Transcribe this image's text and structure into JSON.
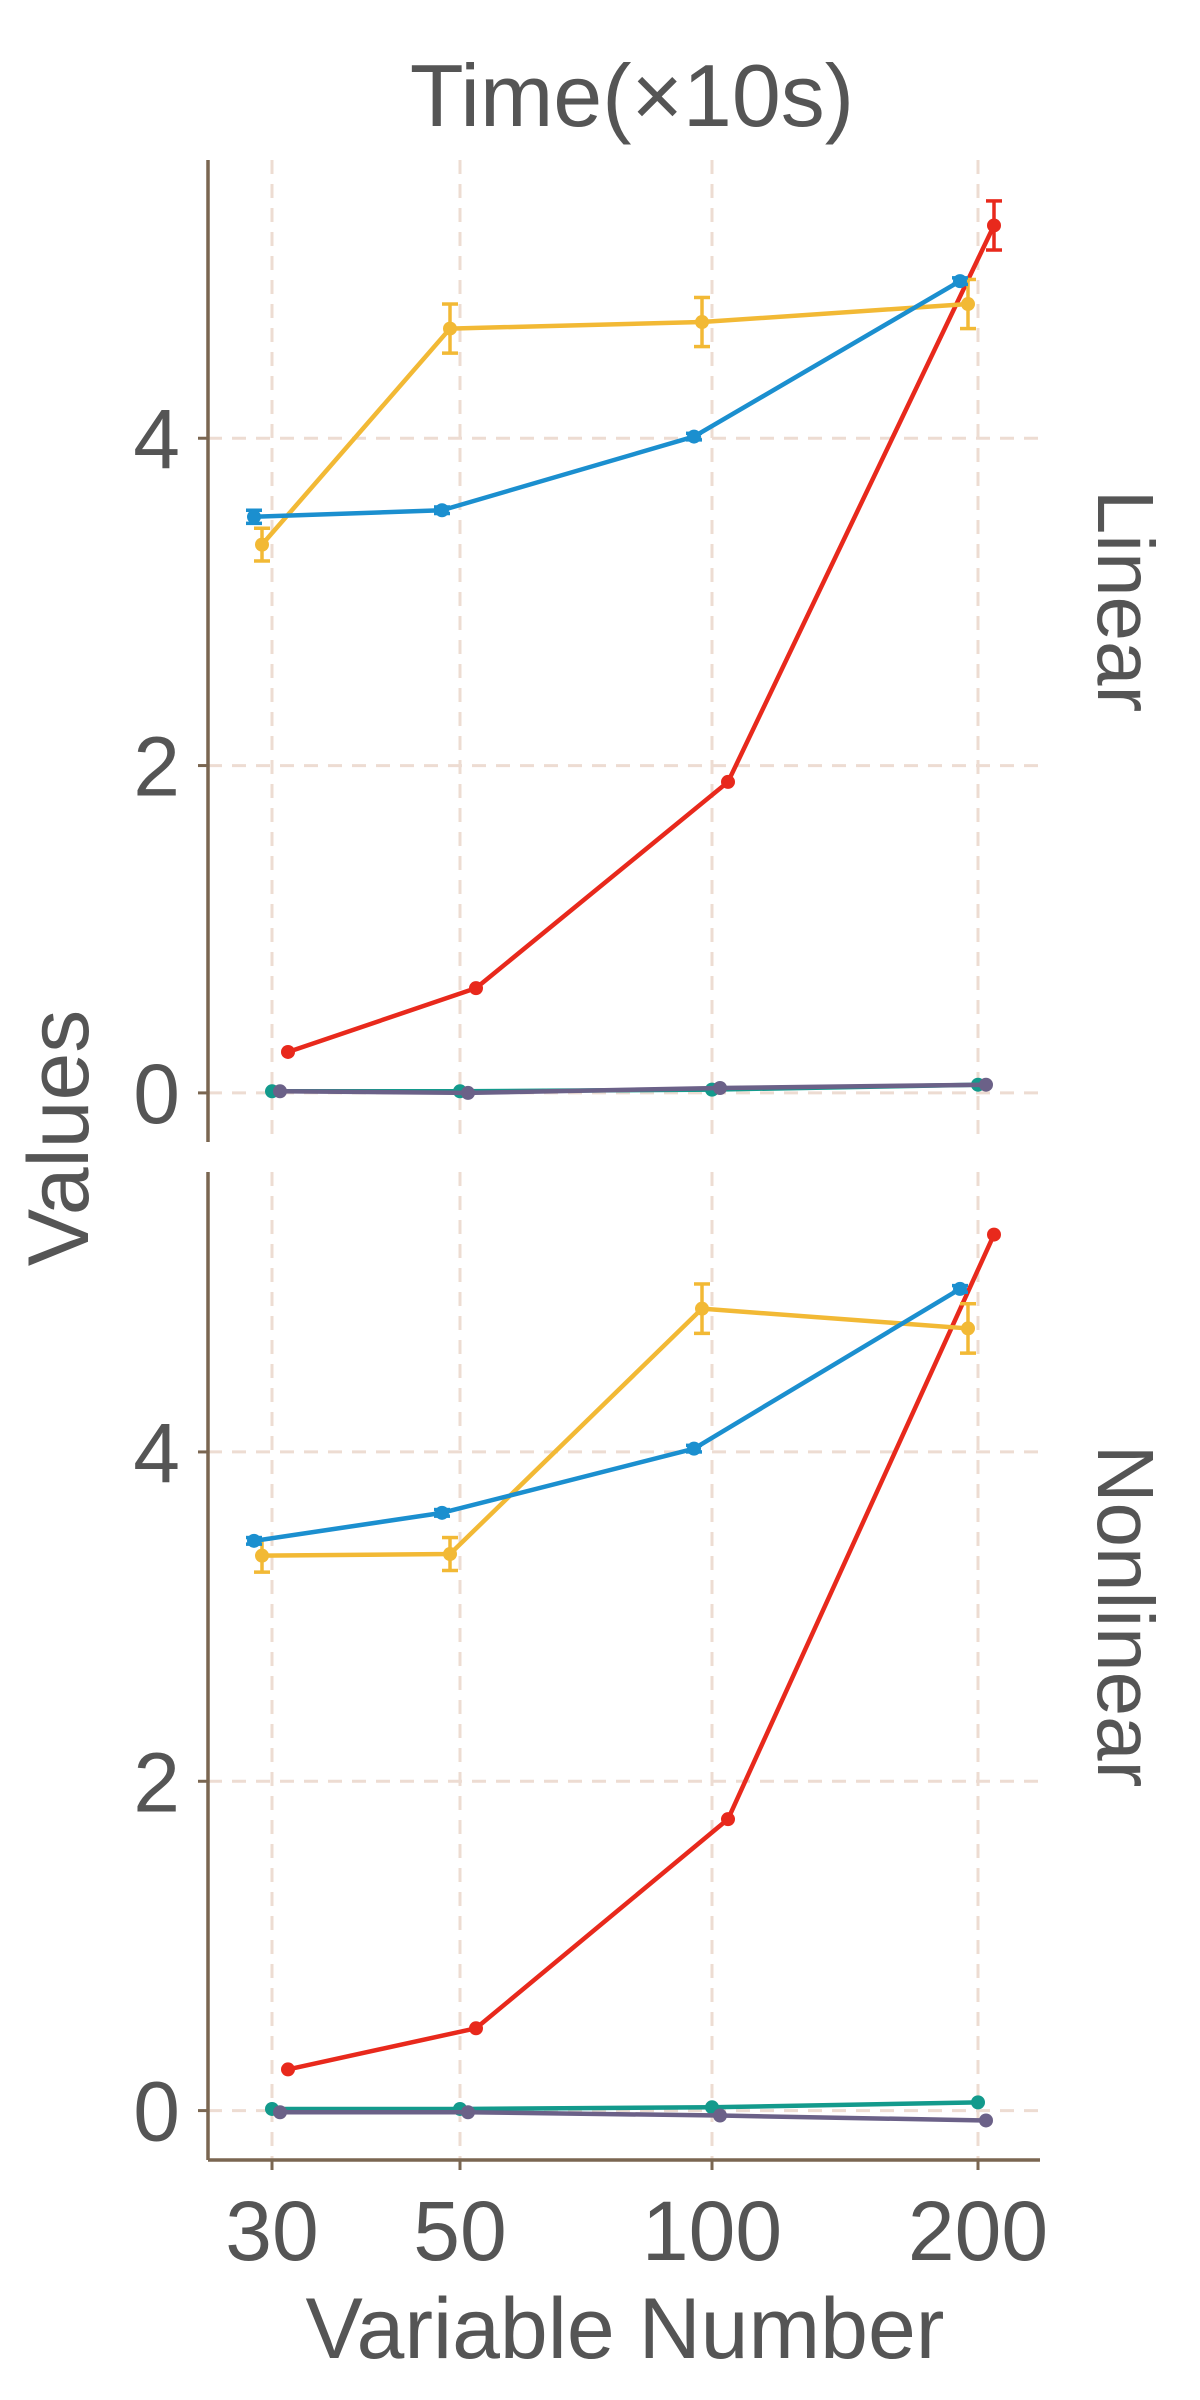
{
  "chart_data": {
    "type": "line",
    "title": "Time(×10s)",
    "xlabel": "Variable Number",
    "ylabel": "Values",
    "x_categories": [
      "30",
      "50",
      "100",
      "200"
    ],
    "y_ticks": [
      "0",
      "2",
      "4"
    ],
    "ylim": [
      -0.3,
      5.7
    ],
    "grid": true,
    "legend": "none",
    "colors": {
      "red": "#e8291c",
      "orange": "#f2b935",
      "blue": "#1b8fcf",
      "teal": "#139a8c",
      "purple": "#6b6188",
      "axis": "#7a6651",
      "grid": "#eddcd2",
      "text": "#555555"
    },
    "panels": [
      {
        "label": "Linear",
        "series": [
          {
            "color": "red",
            "values": [
              0.25,
              0.64,
              1.9,
              5.3
            ],
            "errors": [
              0,
              0,
              0,
              0.15
            ]
          },
          {
            "color": "orange",
            "values": [
              3.35,
              4.67,
              4.71,
              4.82
            ],
            "errors": [
              0.1,
              0.15,
              0.15,
              0.15
            ]
          },
          {
            "color": "blue",
            "values": [
              3.52,
              3.56,
              4.01,
              4.96
            ],
            "errors": [
              0.04,
              0.02,
              0.02,
              0.02
            ]
          },
          {
            "color": "teal",
            "values": [
              0.01,
              0.01,
              0.02,
              0.05
            ],
            "errors": [
              0,
              0,
              0,
              0
            ]
          },
          {
            "color": "purple",
            "values": [
              0.01,
              0.0,
              0.03,
              0.05
            ],
            "errors": [
              0,
              0,
              0,
              0
            ]
          }
        ]
      },
      {
        "label": "Nonlinear",
        "series": [
          {
            "color": "red",
            "values": [
              0.25,
              0.5,
              1.77,
              5.32
            ],
            "errors": [
              0,
              0,
              0,
              0
            ]
          },
          {
            "color": "orange",
            "values": [
              3.37,
              3.38,
              4.87,
              4.75
            ],
            "errors": [
              0.1,
              0.1,
              0.15,
              0.15
            ]
          },
          {
            "color": "blue",
            "values": [
              3.46,
              3.63,
              4.02,
              4.99
            ],
            "errors": [
              0.02,
              0.02,
              0.02,
              0.02
            ]
          },
          {
            "color": "teal",
            "values": [
              0.01,
              0.01,
              0.02,
              0.05
            ],
            "errors": [
              0,
              0,
              0,
              0
            ]
          },
          {
            "color": "purple",
            "values": [
              -0.01,
              -0.01,
              -0.03,
              -0.06
            ],
            "errors": [
              0,
              0,
              0,
              0
            ]
          }
        ]
      }
    ]
  }
}
